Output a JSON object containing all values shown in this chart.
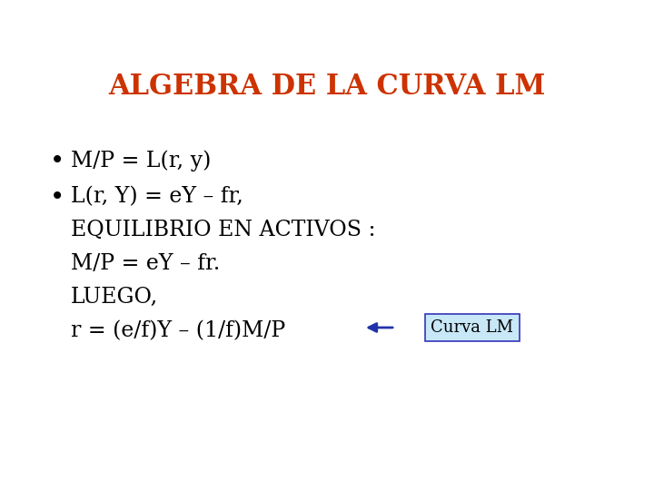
{
  "title": "ALGEBRA DE LA CURVA LM",
  "title_color": "#CC3300",
  "title_fontsize": 22,
  "bg_color": "#FFFFFF",
  "bullet1": "M/P = L(r, y)",
  "bullet2_line1": "L(r, Y) = eY – fr,",
  "bullet2_line2": "EQUILIBRIO EN ACTIVOS :",
  "bullet2_line3": "M/P = eY – fr.",
  "bullet2_line4": "LUEGO,",
  "bullet2_line5": "r = (e/f)Y – (1/f)M/P",
  "label_box": "Curva LM",
  "label_box_color": "#C8E8F8",
  "label_box_border": "#3333BB",
  "arrow_color": "#2233AA",
  "text_color": "#000000",
  "text_fontsize": 17,
  "font_family": "serif"
}
